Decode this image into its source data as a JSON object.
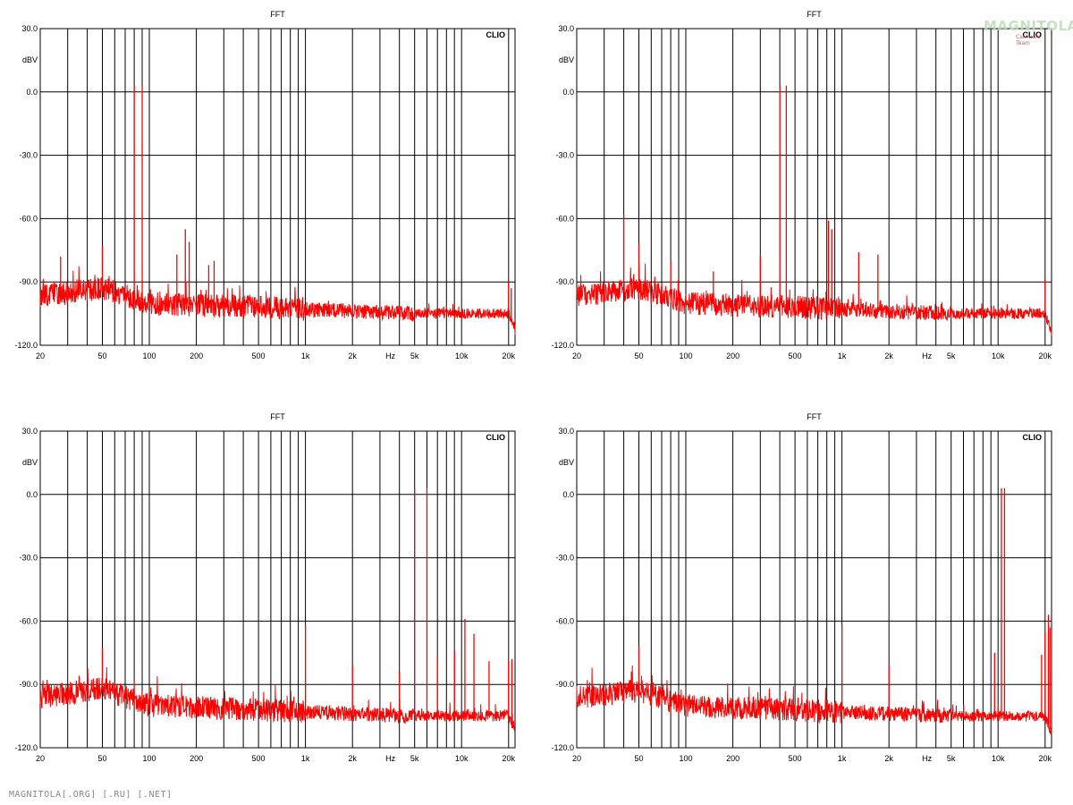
{
  "page": {
    "footer": "MAGNITOLA[.ORG] [.RU] [.NET]",
    "watermark": "MAGNITOLA",
    "watermark_sub": "CarAudio Team"
  },
  "colors": {
    "trace": "#ff0000",
    "grid": "#000000",
    "background": "#ffffff"
  },
  "chart_data": [
    {
      "type": "line",
      "title": "FFT",
      "brand": "CLIO",
      "xlabel": "Hz",
      "ylabel": "dBV",
      "x_scale": "log",
      "xlim": [
        20,
        22000
      ],
      "ylim": [
        -120,
        30
      ],
      "yticks": [
        "30.0",
        "0.0",
        "-30.0",
        "-60.0",
        "-90.0",
        "-120.0"
      ],
      "xticks": [
        "20",
        "50",
        "100",
        "200",
        "500",
        "1k",
        "2k",
        "5k",
        "10k",
        "20k"
      ],
      "grid": true,
      "noise_floor": [
        [
          20,
          -97
        ],
        [
          50,
          -93
        ],
        [
          100,
          -100
        ],
        [
          200,
          -101
        ],
        [
          500,
          -102
        ],
        [
          1000,
          -103
        ],
        [
          2000,
          -104
        ],
        [
          5000,
          -105
        ],
        [
          10000,
          -105
        ],
        [
          20000,
          -105
        ],
        [
          22000,
          -113
        ]
      ],
      "peaks": [
        [
          27,
          -78
        ],
        [
          50,
          -73
        ],
        [
          80,
          3
        ],
        [
          90,
          3
        ],
        [
          150,
          -77
        ],
        [
          170,
          -65
        ],
        [
          180,
          -71
        ],
        [
          240,
          -82
        ],
        [
          260,
          -80
        ],
        [
          20000,
          -90
        ],
        [
          20800,
          -93
        ]
      ]
    },
    {
      "type": "line",
      "title": "FFT",
      "brand": "CLIO",
      "xlabel": "Hz",
      "ylabel": "dBV",
      "x_scale": "log",
      "xlim": [
        20,
        22000
      ],
      "ylim": [
        -120,
        30
      ],
      "yticks": [
        "30.0",
        "0.0",
        "-30.0",
        "-60.0",
        "-90.0",
        "-120.0"
      ],
      "xticks": [
        "20",
        "50",
        "100",
        "200",
        "500",
        "1k",
        "2k",
        "5k",
        "10k",
        "20k"
      ],
      "grid": true,
      "noise_floor": [
        [
          20,
          -97
        ],
        [
          50,
          -93
        ],
        [
          100,
          -100
        ],
        [
          200,
          -101
        ],
        [
          500,
          -102
        ],
        [
          1000,
          -103
        ],
        [
          2000,
          -104
        ],
        [
          5000,
          -105
        ],
        [
          10000,
          -105
        ],
        [
          20000,
          -105
        ],
        [
          22000,
          -114
        ]
      ],
      "peaks": [
        [
          40,
          -58
        ],
        [
          50,
          -72
        ],
        [
          80,
          -80
        ],
        [
          150,
          -85
        ],
        [
          300,
          -78
        ],
        [
          400,
          3
        ],
        [
          440,
          3
        ],
        [
          820,
          -61
        ],
        [
          860,
          -65
        ],
        [
          1280,
          -76
        ],
        [
          1700,
          -77
        ],
        [
          20000,
          -89
        ]
      ]
    },
    {
      "type": "line",
      "title": "FFT",
      "brand": "CLIO",
      "xlabel": "Hz",
      "ylabel": "dBV",
      "x_scale": "log",
      "xlim": [
        20,
        22000
      ],
      "ylim": [
        -120,
        30
      ],
      "yticks": [
        "30.0",
        "0.0",
        "-30.0",
        "-60.0",
        "-90.0",
        "-120.0"
      ],
      "xticks": [
        "20",
        "50",
        "100",
        "200",
        "500",
        "1k",
        "2k",
        "5k",
        "10k",
        "20k"
      ],
      "grid": true,
      "noise_floor": [
        [
          20,
          -96
        ],
        [
          50,
          -92
        ],
        [
          100,
          -100
        ],
        [
          200,
          -101
        ],
        [
          500,
          -102
        ],
        [
          1000,
          -103
        ],
        [
          2000,
          -104
        ],
        [
          5000,
          -105
        ],
        [
          10000,
          -105
        ],
        [
          20000,
          -105
        ],
        [
          22000,
          -113
        ]
      ],
      "peaks": [
        [
          50,
          -73
        ],
        [
          1000,
          -62
        ],
        [
          2000,
          -81
        ],
        [
          4000,
          -84
        ],
        [
          5000,
          3
        ],
        [
          6000,
          3
        ],
        [
          7000,
          -77
        ],
        [
          9000,
          -74
        ],
        [
          10500,
          -59
        ],
        [
          12000,
          -66
        ],
        [
          15000,
          -79
        ],
        [
          20000,
          -79
        ],
        [
          21000,
          -78
        ]
      ]
    },
    {
      "type": "line",
      "title": "FFT",
      "brand": "CLIO",
      "xlabel": "Hz",
      "ylabel": "dBV",
      "x_scale": "log",
      "xlim": [
        20,
        22000
      ],
      "ylim": [
        -120,
        30
      ],
      "yticks": [
        "30.0",
        "0.0",
        "-30.0",
        "-60.0",
        "-90.0",
        "-120.0"
      ],
      "xticks": [
        "20",
        "50",
        "100",
        "200",
        "500",
        "1k",
        "2k",
        "5k",
        "10k",
        "20k"
      ],
      "grid": true,
      "noise_floor": [
        [
          20,
          -96
        ],
        [
          50,
          -93
        ],
        [
          100,
          -100
        ],
        [
          200,
          -101
        ],
        [
          500,
          -102
        ],
        [
          1000,
          -103
        ],
        [
          2000,
          -104
        ],
        [
          5000,
          -105
        ],
        [
          10000,
          -105
        ],
        [
          20000,
          -105
        ],
        [
          22000,
          -113
        ]
      ],
      "peaks": [
        [
          50,
          -72
        ],
        [
          1000,
          -62
        ],
        [
          2000,
          -81
        ],
        [
          9500,
          -75
        ],
        [
          10500,
          3
        ],
        [
          11000,
          3
        ],
        [
          19000,
          -76
        ],
        [
          20000,
          -65
        ],
        [
          21000,
          -57
        ],
        [
          21500,
          -63
        ]
      ]
    }
  ]
}
